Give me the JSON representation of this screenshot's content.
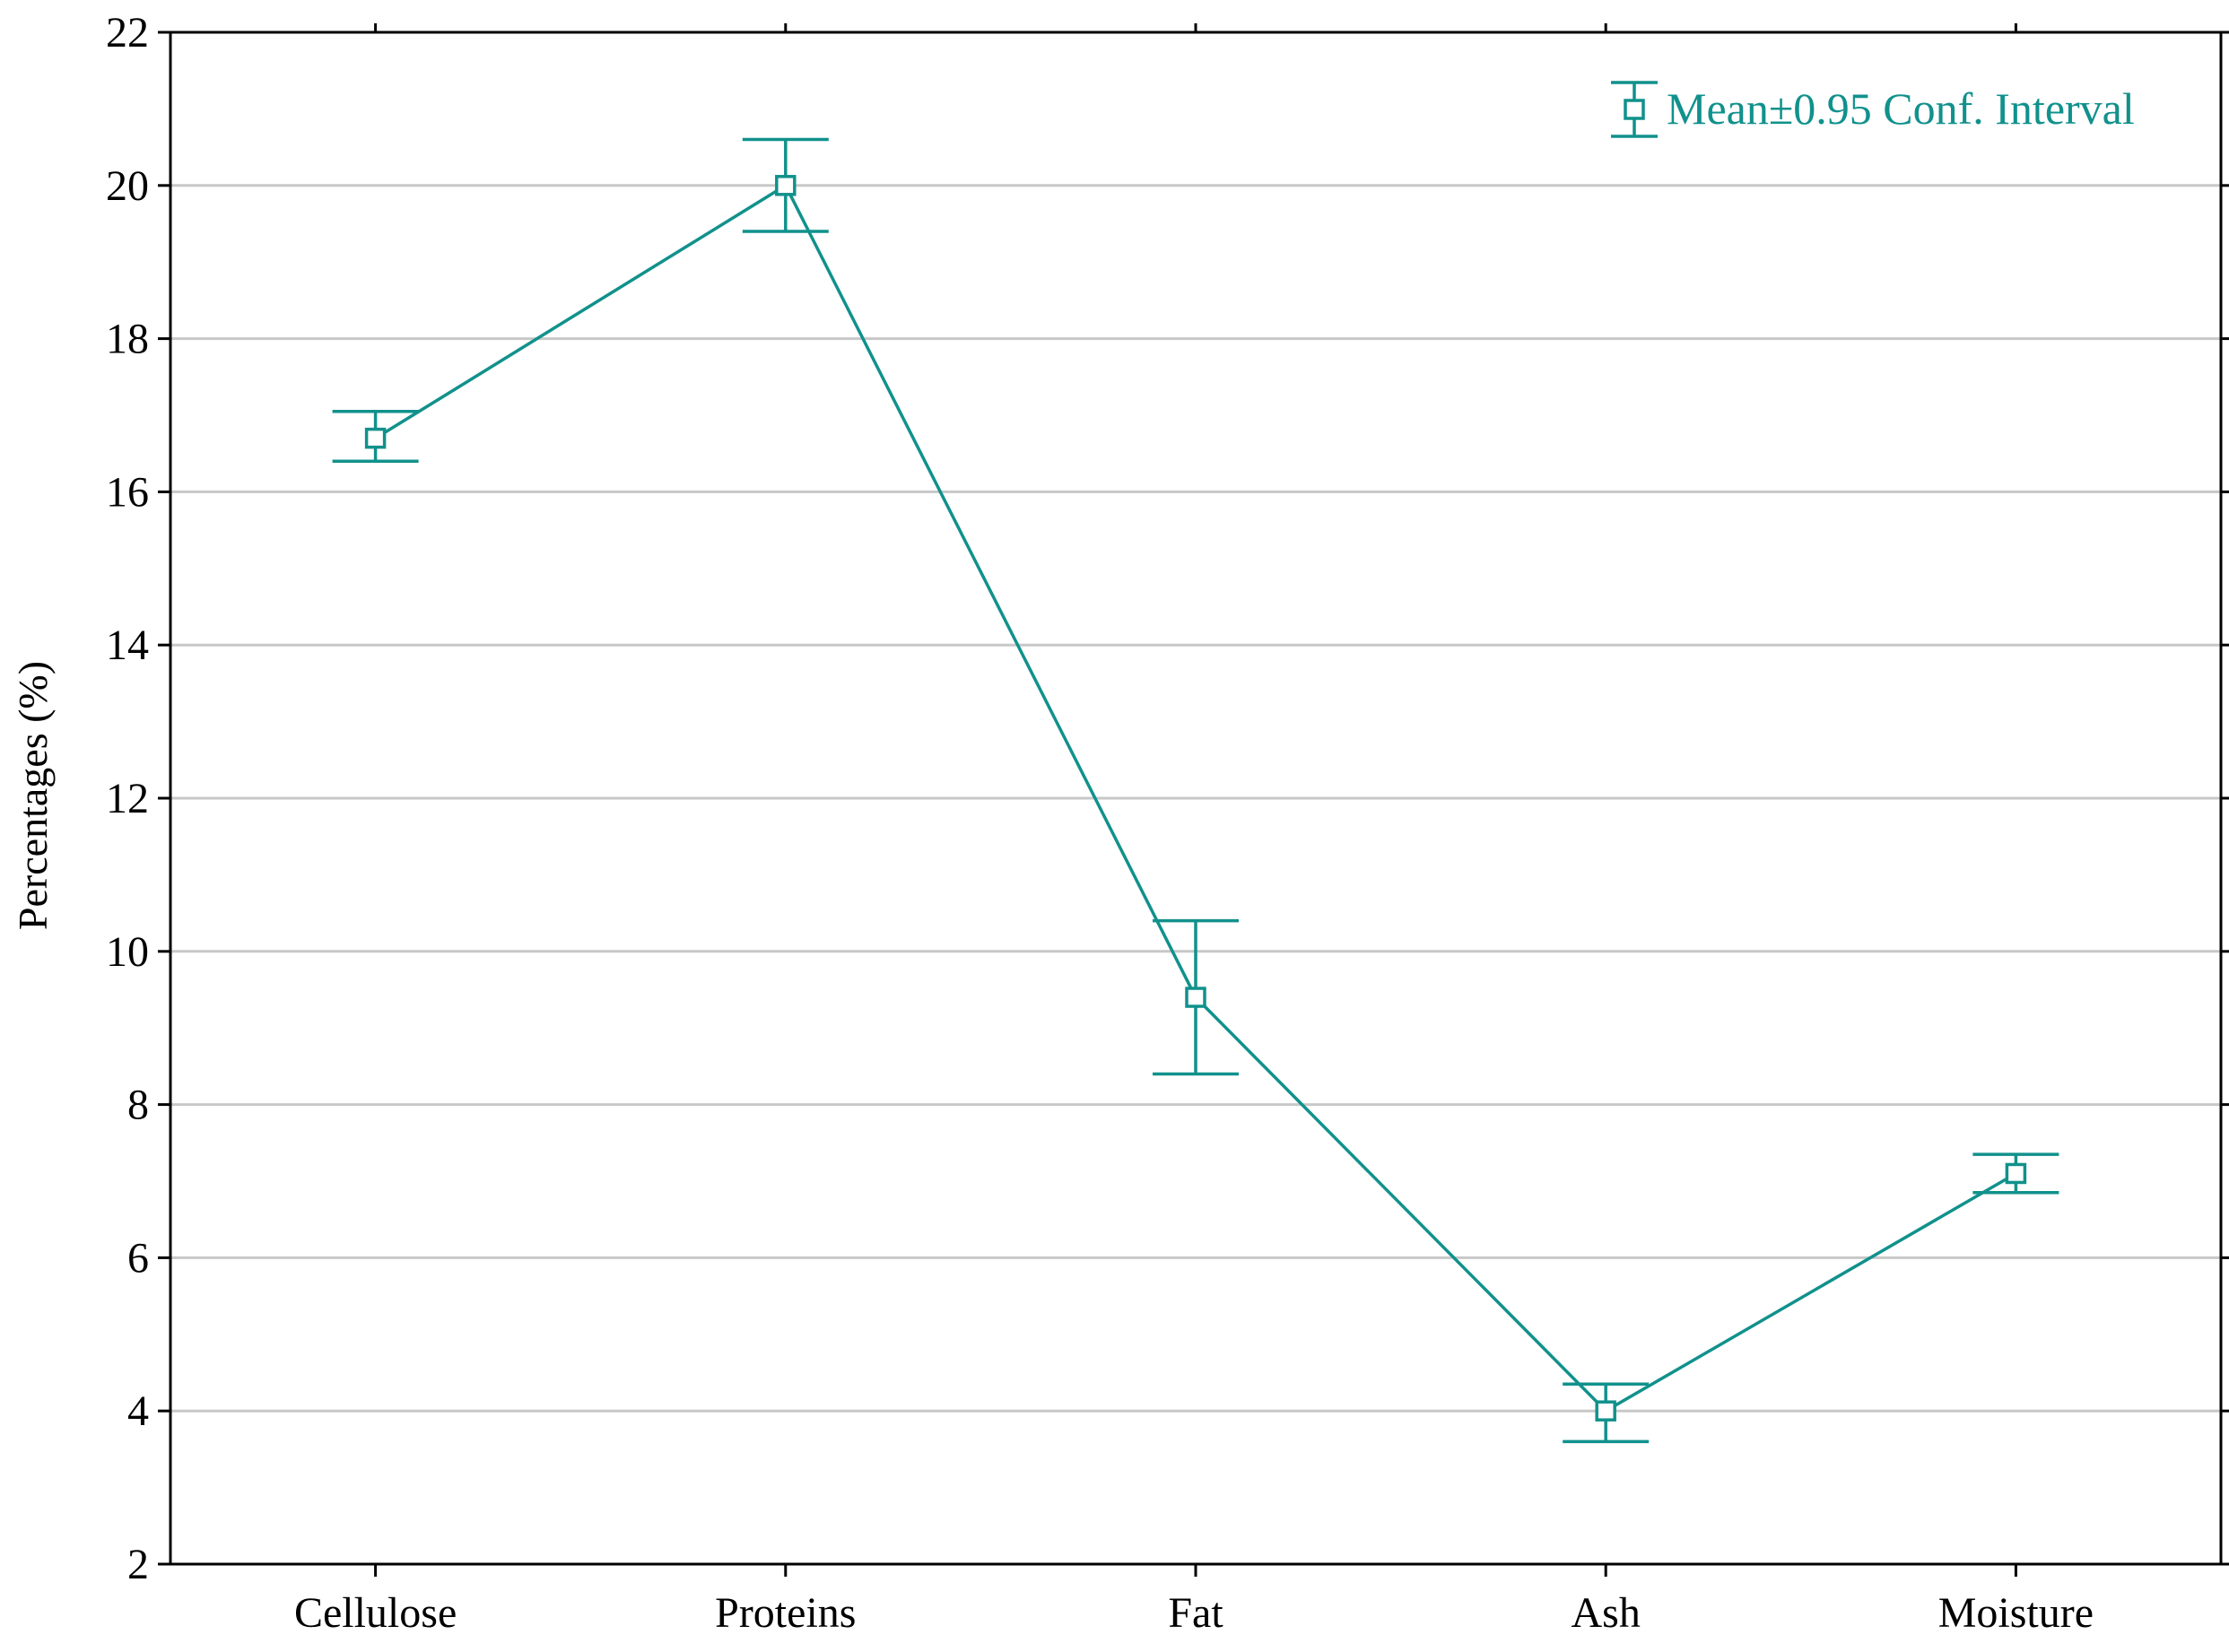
{
  "chart_data": {
    "type": "line",
    "title": "",
    "xlabel": "",
    "ylabel": "Percentages (%)",
    "categories": [
      "Cellulose",
      "Proteins",
      "Fat",
      "Ash",
      "Moisture"
    ],
    "series": [
      {
        "name": "Mean±0.95 Conf. Interval",
        "values": [
          16.7,
          20.0,
          9.4,
          4.0,
          7.1
        ],
        "ci_lower": [
          16.4,
          19.4,
          8.4,
          3.6,
          6.85
        ],
        "ci_upper": [
          17.05,
          20.6,
          10.4,
          4.35,
          7.35
        ],
        "color": "#11918c"
      }
    ],
    "ylim": [
      2,
      22
    ],
    "yticks": [
      "2",
      "4",
      "6",
      "8",
      "10",
      "12",
      "14",
      "16",
      "18",
      "20",
      "22"
    ],
    "grid": "horizontal",
    "legend_position": "top-right",
    "axis_color": "#000000",
    "grid_color": "#c8c8c8"
  }
}
